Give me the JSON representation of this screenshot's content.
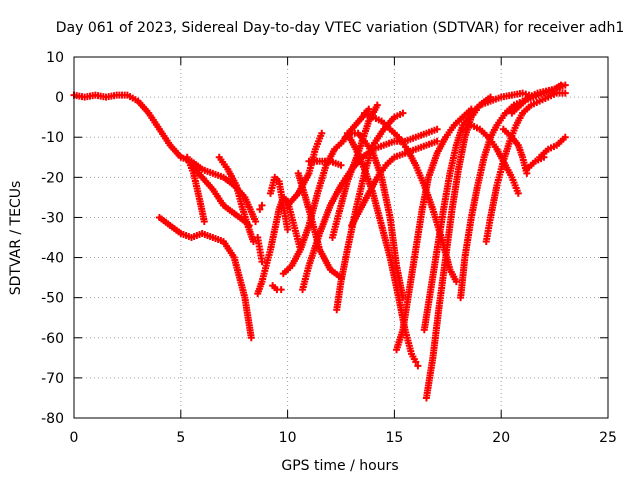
{
  "chart_data": {
    "type": "scatter",
    "title": "Day 061 of 2023, Sidereal Day-to-day VTEC variation (SDTVAR) for receiver adh1",
    "xlabel": "GPS time / hours",
    "ylabel": "SDTVAR / TECUs",
    "xlim": [
      0,
      25
    ],
    "ylim": [
      -80,
      10
    ],
    "xticks": [
      "0",
      "5",
      "10",
      "15",
      "20",
      "25"
    ],
    "yticks": [
      "10",
      "0",
      "-10",
      "-20",
      "-30",
      "-40",
      "-50",
      "-60",
      "-70",
      "-80"
    ],
    "grid": true,
    "marker": "plus",
    "color": "#ff0000",
    "series": [
      {
        "points": [
          [
            0,
            0.5
          ],
          [
            0.5,
            0
          ],
          [
            1,
            0.5
          ],
          [
            1.5,
            0
          ],
          [
            2,
            0.5
          ],
          [
            2.5,
            0.5
          ],
          [
            3,
            -1
          ],
          [
            3.5,
            -4
          ],
          [
            4,
            -8
          ],
          [
            4.5,
            -12
          ],
          [
            5,
            -15
          ],
          [
            5.5,
            -16
          ],
          [
            6,
            -18
          ],
          [
            6.5,
            -19
          ],
          [
            7,
            -20
          ],
          [
            7.5,
            -22
          ],
          [
            8,
            -25
          ],
          [
            8.5,
            -31
          ]
        ]
      },
      {
        "points": [
          [
            4,
            -30
          ],
          [
            4.5,
            -32
          ],
          [
            5,
            -34
          ],
          [
            5.5,
            -35
          ],
          [
            6,
            -34
          ],
          [
            6.5,
            -35
          ],
          [
            7,
            -36
          ],
          [
            7.5,
            -40
          ],
          [
            8,
            -50
          ],
          [
            8.3,
            -60
          ]
        ]
      },
      {
        "points": [
          [
            5.5,
            -17
          ],
          [
            6,
            -20
          ],
          [
            6.5,
            -23
          ],
          [
            7,
            -27
          ],
          [
            7.5,
            -29
          ],
          [
            8,
            -31
          ],
          [
            8.2,
            -32
          ]
        ]
      },
      {
        "points": [
          [
            5.3,
            -15
          ],
          [
            5.6,
            -19
          ],
          [
            5.9,
            -26
          ],
          [
            6.1,
            -31
          ]
        ]
      },
      {
        "points": [
          [
            6.8,
            -15
          ],
          [
            7.2,
            -18
          ],
          [
            7.6,
            -22
          ],
          [
            7.9,
            -28
          ],
          [
            8.2,
            -33
          ],
          [
            8.4,
            -36
          ]
        ]
      },
      {
        "points": [
          [
            8.6,
            -35
          ],
          [
            8.7,
            -38
          ],
          [
            8.8,
            -41
          ]
        ]
      },
      {
        "points": [
          [
            8.7,
            -28
          ],
          [
            8.8,
            -27
          ]
        ]
      },
      {
        "points": [
          [
            8.6,
            -49
          ],
          [
            8.8,
            -46
          ],
          [
            9,
            -42
          ],
          [
            9.2,
            -38
          ],
          [
            9.4,
            -33
          ],
          [
            9.6,
            -28
          ],
          [
            9.8,
            -25
          ],
          [
            10,
            -26
          ],
          [
            10.3,
            -32
          ],
          [
            10.6,
            -38
          ]
        ]
      },
      {
        "points": [
          [
            9.2,
            -24
          ],
          [
            9.4,
            -20
          ],
          [
            9.6,
            -21
          ],
          [
            9.8,
            -27
          ],
          [
            10,
            -33
          ]
        ]
      },
      {
        "points": [
          [
            9.3,
            -47
          ],
          [
            9.5,
            -48
          ],
          [
            9.7,
            -48
          ]
        ]
      },
      {
        "points": [
          [
            10,
            -27
          ],
          [
            10.5,
            -24
          ],
          [
            11,
            -19
          ],
          [
            11.3,
            -13
          ],
          [
            11.6,
            -9
          ]
        ]
      },
      {
        "points": [
          [
            9.8,
            -44
          ],
          [
            10.2,
            -42
          ],
          [
            10.6,
            -38
          ],
          [
            11,
            -32
          ],
          [
            11.4,
            -24
          ],
          [
            11.8,
            -17
          ],
          [
            12.2,
            -13
          ],
          [
            12.6,
            -11
          ],
          [
            13,
            -8
          ],
          [
            13.5,
            -5
          ],
          [
            13.8,
            -3
          ]
        ]
      },
      {
        "points": [
          [
            10.7,
            -48
          ],
          [
            11,
            -42
          ],
          [
            11.5,
            -34
          ],
          [
            12,
            -27
          ],
          [
            12.5,
            -22
          ],
          [
            13,
            -18
          ],
          [
            13.5,
            -15
          ],
          [
            14,
            -13
          ],
          [
            14.5,
            -12
          ],
          [
            15,
            -11
          ],
          [
            15.5,
            -11
          ],
          [
            16,
            -10
          ],
          [
            16.5,
            -9
          ],
          [
            17,
            -8
          ]
        ]
      },
      {
        "points": [
          [
            10.5,
            -19
          ],
          [
            11,
            -28
          ],
          [
            11.5,
            -38
          ],
          [
            12,
            -43
          ],
          [
            12.5,
            -45
          ]
        ]
      },
      {
        "points": [
          [
            11,
            -16
          ],
          [
            11.5,
            -16
          ],
          [
            12,
            -16
          ],
          [
            12.5,
            -17
          ]
        ]
      },
      {
        "points": [
          [
            12.1,
            -35
          ],
          [
            12.4,
            -29
          ],
          [
            12.8,
            -21
          ],
          [
            13.3,
            -14
          ],
          [
            13.8,
            -6
          ],
          [
            14.2,
            -2
          ]
        ]
      },
      {
        "points": [
          [
            12.3,
            -53
          ],
          [
            12.5,
            -46
          ],
          [
            12.8,
            -38
          ],
          [
            13.2,
            -28
          ],
          [
            13.6,
            -19
          ],
          [
            14,
            -12
          ],
          [
            14.5,
            -8
          ],
          [
            15,
            -5
          ],
          [
            15.4,
            -4
          ]
        ]
      },
      {
        "points": [
          [
            12.8,
            -9
          ],
          [
            13.2,
            -13
          ],
          [
            13.6,
            -18
          ],
          [
            14,
            -24
          ],
          [
            14.4,
            -32
          ],
          [
            14.8,
            -40
          ],
          [
            15.2,
            -50
          ],
          [
            15.5,
            -58
          ],
          [
            15.8,
            -64
          ],
          [
            16,
            -66
          ],
          [
            16.1,
            -67
          ]
        ]
      },
      {
        "points": [
          [
            12.7,
            -10
          ],
          [
            13,
            -9
          ],
          [
            13.3,
            -9
          ],
          [
            13.6,
            -11
          ],
          [
            14,
            -14
          ],
          [
            14.4,
            -20
          ],
          [
            14.8,
            -30
          ],
          [
            15.1,
            -42
          ],
          [
            15.4,
            -50
          ]
        ]
      },
      {
        "points": [
          [
            13,
            -32
          ],
          [
            13.4,
            -28
          ],
          [
            13.8,
            -24
          ],
          [
            14.2,
            -20
          ],
          [
            14.6,
            -17
          ],
          [
            15,
            -15
          ],
          [
            15.5,
            -14
          ],
          [
            16,
            -13
          ],
          [
            16.5,
            -12
          ],
          [
            17,
            -11
          ]
        ]
      },
      {
        "points": [
          [
            13.6,
            -4
          ],
          [
            14,
            -5
          ],
          [
            14.4,
            -6
          ],
          [
            14.8,
            -8
          ],
          [
            15.2,
            -10
          ],
          [
            15.6,
            -13
          ],
          [
            16,
            -17
          ],
          [
            16.4,
            -22
          ],
          [
            16.8,
            -28
          ],
          [
            17.2,
            -35
          ],
          [
            17.6,
            -43
          ],
          [
            17.9,
            -46
          ]
        ]
      },
      {
        "points": [
          [
            15.1,
            -63
          ],
          [
            15.4,
            -58
          ],
          [
            15.7,
            -48
          ],
          [
            16,
            -38
          ],
          [
            16.3,
            -28
          ],
          [
            16.6,
            -20
          ],
          [
            17,
            -14
          ],
          [
            17.4,
            -10
          ],
          [
            17.8,
            -7
          ],
          [
            18.2,
            -5
          ],
          [
            18.6,
            -3
          ]
        ]
      },
      {
        "points": [
          [
            16.5,
            -75
          ],
          [
            16.8,
            -65
          ],
          [
            17.1,
            -52
          ],
          [
            17.4,
            -40
          ],
          [
            17.7,
            -28
          ],
          [
            18,
            -18
          ],
          [
            18.3,
            -10
          ],
          [
            18.6,
            -5
          ],
          [
            19,
            -2
          ],
          [
            19.5,
            0
          ]
        ]
      },
      {
        "points": [
          [
            16.4,
            -58
          ],
          [
            16.7,
            -48
          ],
          [
            17,
            -38
          ],
          [
            17.3,
            -28
          ],
          [
            17.6,
            -19
          ],
          [
            17.9,
            -12
          ],
          [
            18.2,
            -7
          ],
          [
            18.6,
            -4
          ],
          [
            19,
            -2
          ],
          [
            19.5,
            -1
          ],
          [
            20,
            0
          ],
          [
            20.5,
            0.5
          ],
          [
            21,
            1
          ],
          [
            21.3,
            0.5
          ]
        ]
      },
      {
        "points": [
          [
            18.1,
            -50
          ],
          [
            18.3,
            -40
          ],
          [
            18.6,
            -30
          ],
          [
            18.9,
            -22
          ],
          [
            19.2,
            -15
          ],
          [
            19.5,
            -10
          ],
          [
            19.8,
            -7
          ],
          [
            20.2,
            -4
          ],
          [
            20.6,
            -2
          ],
          [
            21,
            -1
          ],
          [
            21.5,
            0
          ],
          [
            22,
            1
          ],
          [
            22.5,
            2
          ],
          [
            23,
            3
          ]
        ]
      },
      {
        "points": [
          [
            18.2,
            -8
          ],
          [
            18.6,
            -7
          ],
          [
            19,
            -8
          ],
          [
            19.4,
            -10
          ],
          [
            19.8,
            -13
          ],
          [
            20.2,
            -17
          ],
          [
            20.5,
            -20
          ],
          [
            20.8,
            -24
          ]
        ]
      },
      {
        "points": [
          [
            19.3,
            -36
          ],
          [
            19.5,
            -30
          ],
          [
            19.8,
            -22
          ],
          [
            20.1,
            -16
          ],
          [
            20.4,
            -11
          ],
          [
            20.7,
            -7
          ],
          [
            21,
            -4
          ],
          [
            21.4,
            -2
          ],
          [
            21.8,
            -1
          ],
          [
            22.2,
            0
          ],
          [
            22.6,
            1
          ],
          [
            23,
            1
          ]
        ]
      },
      {
        "points": [
          [
            20.1,
            -8
          ],
          [
            20.5,
            -10
          ],
          [
            20.8,
            -12
          ],
          [
            21,
            -15
          ],
          [
            21.2,
            -19
          ]
        ]
      },
      {
        "points": [
          [
            20.5,
            -4
          ],
          [
            20.9,
            -2
          ],
          [
            21.3,
            0
          ],
          [
            21.7,
            1
          ],
          [
            22.1,
            1.5
          ],
          [
            22.5,
            2
          ],
          [
            22.8,
            3
          ]
        ]
      },
      {
        "points": [
          [
            21.2,
            -18
          ],
          [
            21.6,
            -16
          ],
          [
            22,
            -15
          ]
        ]
      },
      {
        "points": [
          [
            21.8,
            -15
          ],
          [
            22.2,
            -13
          ],
          [
            22.6,
            -12
          ],
          [
            23,
            -10
          ]
        ]
      }
    ]
  }
}
